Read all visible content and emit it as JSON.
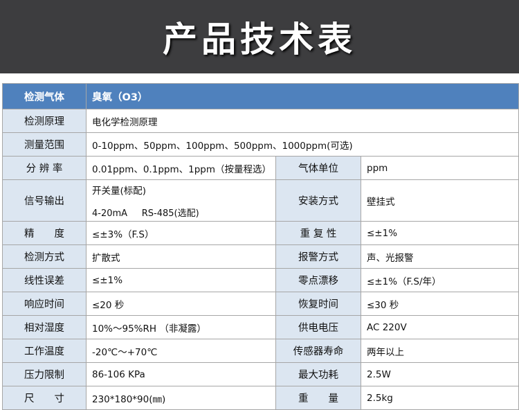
{
  "title": "产品技术表",
  "colors": {
    "header_bg": "#4f81bd",
    "label_bg": "#dce6f1",
    "banner_bg": "#3d3d3f"
  },
  "header": {
    "label": "检测气体",
    "value": "臭氧（O3）"
  },
  "rows_full": [
    {
      "label": "检测原理",
      "value": "电化学检测原理"
    },
    {
      "label": "测量范围",
      "value": "0-10ppm、50ppm、100ppm、500ppm、1000ppm(可选)"
    }
  ],
  "resolution": {
    "label": "分 辨 率",
    "value": "0.01ppm、0.1ppm、1ppm（按量程选）",
    "label2": "气体单位",
    "value2": "ppm"
  },
  "signal": {
    "label": "信号输出",
    "line1": "开关量(标配)",
    "line2": "4-20mA     RS-485(选配)",
    "label2": "安装方式",
    "value2": "壁挂式"
  },
  "rows": [
    {
      "label": "精　　度",
      "value": "≤±3%（F.S）",
      "label2": "重 复 性",
      "value2": "≤±1%"
    },
    {
      "label": "检测方式",
      "value": "扩散式",
      "label2": "报警方式",
      "value2": "声、光报警"
    },
    {
      "label": "线性误差",
      "value": "≤±1%",
      "label2": "零点漂移",
      "value2": "≤±1%（F.S/年）"
    },
    {
      "label": "响应时间",
      "value": "≤20 秒",
      "label2": "恢复时间",
      "value2": "≤30 秒"
    },
    {
      "label": "相对湿度",
      "value": "10%～95%RH （非凝露）",
      "label2": "供电电压",
      "value2": "AC 220V"
    },
    {
      "label": "工作温度",
      "value": "-20℃～+70℃",
      "label2": "传感器寿命",
      "value2": "两年以上"
    },
    {
      "label": "压力限制",
      "value": "86-106 KPa",
      "label2": "最大功耗",
      "value2": "2.5W"
    },
    {
      "label": "尺　　寸",
      "value": "230*180*90(㎜)",
      "label2": "重　　量",
      "value2": "2.5kg"
    }
  ]
}
